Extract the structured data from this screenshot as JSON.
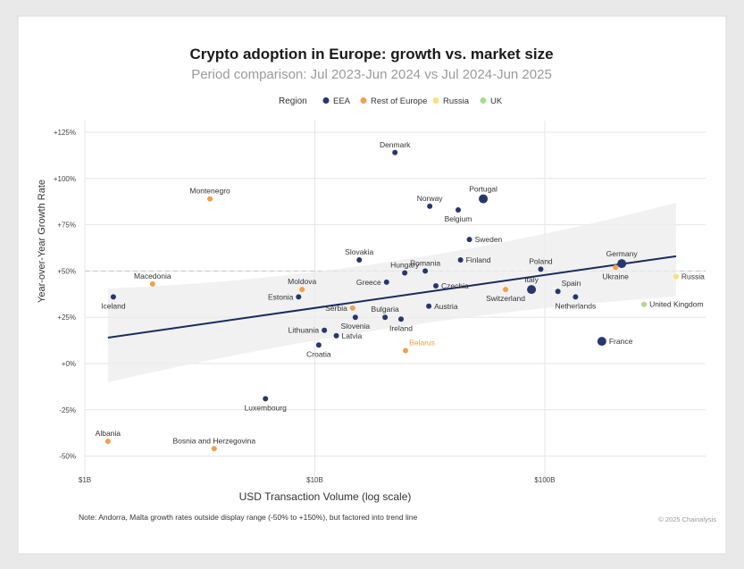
{
  "chart_data": {
    "type": "scatter",
    "title": "Crypto adoption in Europe: growth vs. market size",
    "subtitle": "Period comparison: Jul 2023-Jun 2024 vs Jul 2024-Jun 2025",
    "xlabel": "USD Transaction Volume (log scale)",
    "ylabel": "Year-over-Year Growth Rate",
    "x_scale": "log",
    "x_unit": "USD billions",
    "xlim": [
      1,
      500
    ],
    "ylim": [
      -60,
      130
    ],
    "x_ticks": [
      {
        "value": 1,
        "label": "$1B"
      },
      {
        "value": 10,
        "label": "$10B"
      },
      {
        "value": 100,
        "label": "$100B"
      }
    ],
    "y_ticks": [
      {
        "value": 125,
        "label": "+125%"
      },
      {
        "value": 100,
        "label": "+100%"
      },
      {
        "value": 75,
        "label": "+75%"
      },
      {
        "value": 50,
        "label": "+50%"
      },
      {
        "value": 25,
        "label": "+25%"
      },
      {
        "value": 0,
        "label": "+0%"
      },
      {
        "value": -25,
        "label": "-25%"
      },
      {
        "value": -50,
        "label": "-50%"
      }
    ],
    "grid": true,
    "reference_line": {
      "y": 50,
      "style": "dashed"
    },
    "legend": {
      "title": "Region",
      "placement": "top",
      "entries": [
        {
          "name": "EEA",
          "color": "#26366f"
        },
        {
          "name": "Rest of Europe",
          "color": "#f0a04b"
        },
        {
          "name": "Russia",
          "color": "#f5e27a"
        },
        {
          "name": "UK",
          "color": "#a8dc8f"
        }
      ]
    },
    "trend_line": {
      "x": [
        1.26,
        372
      ],
      "y": [
        14,
        58
      ],
      "color": "#1a2a5e",
      "confidence_band": true
    },
    "points": [
      {
        "name": "Denmark",
        "region": "EEA",
        "x": 22.3,
        "y": 114
      },
      {
        "name": "Montenegro",
        "region": "Rest of Europe",
        "x": 3.5,
        "y": 89
      },
      {
        "name": "Norway",
        "region": "EEA",
        "x": 31.6,
        "y": 85
      },
      {
        "name": "Portugal",
        "region": "EEA",
        "x": 54,
        "y": 89,
        "large": true
      },
      {
        "name": "Belgium",
        "region": "EEA",
        "x": 42,
        "y": 83
      },
      {
        "name": "Sweden",
        "region": "EEA",
        "x": 47,
        "y": 67
      },
      {
        "name": "Slovakia",
        "region": "EEA",
        "x": 15.6,
        "y": 56
      },
      {
        "name": "Finland",
        "region": "EEA",
        "x": 43,
        "y": 56
      },
      {
        "name": "Hungary",
        "region": "EEA",
        "x": 24.6,
        "y": 49
      },
      {
        "name": "Romania",
        "region": "EEA",
        "x": 30.2,
        "y": 50
      },
      {
        "name": "Poland",
        "region": "EEA",
        "x": 96,
        "y": 51
      },
      {
        "name": "Germany",
        "region": "EEA",
        "x": 216,
        "y": 54,
        "large": true
      },
      {
        "name": "Ukraine",
        "region": "Rest of Europe",
        "x": 203,
        "y": 52
      },
      {
        "name": "Russia",
        "region": "Russia",
        "x": 372,
        "y": 47
      },
      {
        "name": "Macedonia",
        "region": "Rest of Europe",
        "x": 1.97,
        "y": 43
      },
      {
        "name": "Greece",
        "region": "EEA",
        "x": 20.5,
        "y": 44
      },
      {
        "name": "Czechia",
        "region": "EEA",
        "x": 33.6,
        "y": 42
      },
      {
        "name": "Iceland",
        "region": "EEA",
        "x": 1.33,
        "y": 36
      },
      {
        "name": "Moldova",
        "region": "Rest of Europe",
        "x": 8.8,
        "y": 40
      },
      {
        "name": "Estonia",
        "region": "EEA",
        "x": 8.5,
        "y": 36
      },
      {
        "name": "Switzerland",
        "region": "Rest of Europe",
        "x": 67.5,
        "y": 40
      },
      {
        "name": "Italy",
        "region": "EEA",
        "x": 87.5,
        "y": 40,
        "large": true
      },
      {
        "name": "Spain",
        "region": "EEA",
        "x": 114,
        "y": 39
      },
      {
        "name": "Netherlands",
        "region": "EEA",
        "x": 136,
        "y": 36
      },
      {
        "name": "United Kingdom",
        "region": "UK",
        "x": 270,
        "y": 32
      },
      {
        "name": "Austria",
        "region": "EEA",
        "x": 31.3,
        "y": 31
      },
      {
        "name": "Serbia",
        "region": "Rest of Europe",
        "x": 14.6,
        "y": 30
      },
      {
        "name": "Bulgaria",
        "region": "EEA",
        "x": 20.2,
        "y": 25
      },
      {
        "name": "Slovenia",
        "region": "EEA",
        "x": 15,
        "y": 25
      },
      {
        "name": "Ireland",
        "region": "EEA",
        "x": 23.7,
        "y": 24
      },
      {
        "name": "Lithuania",
        "region": "EEA",
        "x": 11,
        "y": 18
      },
      {
        "name": "Latvia",
        "region": "EEA",
        "x": 12.4,
        "y": 15
      },
      {
        "name": "Croatia",
        "region": "EEA",
        "x": 10.4,
        "y": 10
      },
      {
        "name": "Belarus",
        "region": "Rest of Europe",
        "x": 24.8,
        "y": 7
      },
      {
        "name": "France",
        "region": "EEA",
        "x": 177,
        "y": 12,
        "large": true
      },
      {
        "name": "Luxembourg",
        "region": "EEA",
        "x": 6.1,
        "y": -19
      },
      {
        "name": "Albania",
        "region": "Rest of Europe",
        "x": 1.26,
        "y": -42
      },
      {
        "name": "Bosnia and Herzegovina",
        "region": "Rest of Europe",
        "x": 3.65,
        "y": -46
      }
    ],
    "note": "Note: Andorra, Malta growth rates outside display range (-50% to +150%), but factored into trend line",
    "credit": "© 2025 Chainalysis"
  }
}
